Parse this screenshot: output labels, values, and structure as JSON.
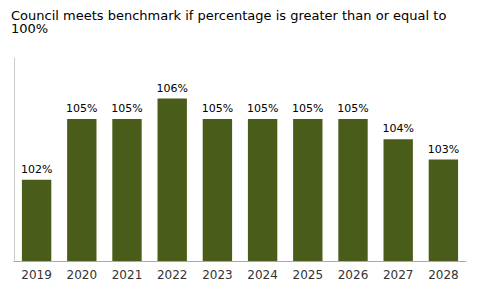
{
  "chart_data": {
    "type": "bar",
    "title": "Council meets benchmark if percentage is greater than or equal to 100%",
    "categories": [
      "2019",
      "2020",
      "2021",
      "2022",
      "2023",
      "2024",
      "2025",
      "2026",
      "2027",
      "2028"
    ],
    "values": [
      102,
      105,
      105,
      106,
      105,
      105,
      105,
      105,
      104,
      103
    ],
    "value_labels": [
      "102%",
      "105%",
      "105%",
      "106%",
      "105%",
      "105%",
      "105%",
      "105%",
      "104%",
      "103%"
    ],
    "data_labels": true,
    "color": "#4a5c1a",
    "ylim": [
      98,
      108
    ],
    "grid": false,
    "tick_labels": "x"
  }
}
